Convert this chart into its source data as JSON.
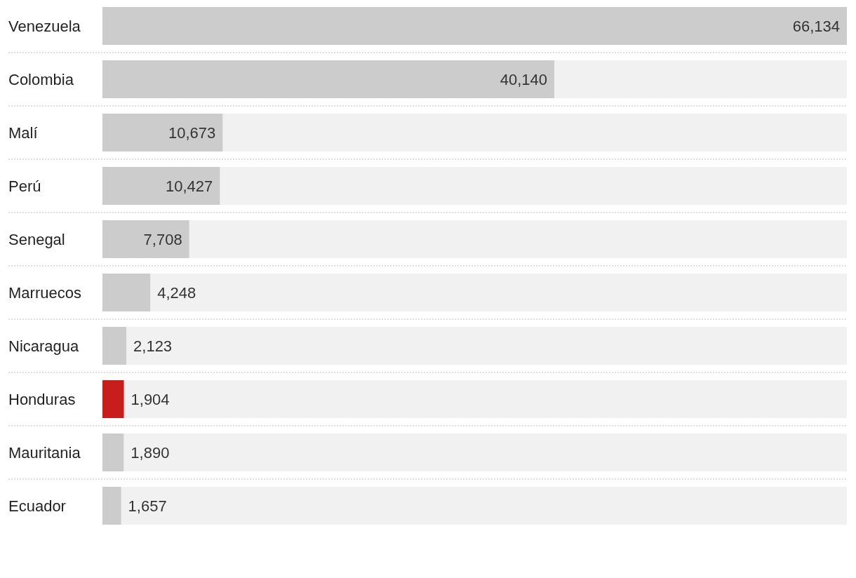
{
  "chart_data": {
    "type": "bar",
    "orientation": "horizontal",
    "categories": [
      "Venezuela",
      "Colombia",
      "Malí",
      "Perú",
      "Senegal",
      "Marruecos",
      "Nicaragua",
      "Honduras",
      "Mauritania",
      "Ecuador"
    ],
    "values": [
      66134,
      40140,
      10673,
      10427,
      7708,
      4248,
      2123,
      1904,
      1890,
      1657
    ],
    "colors": [
      "#cccccc",
      "#cccccc",
      "#cccccc",
      "#cccccc",
      "#cccccc",
      "#cccccc",
      "#cccccc",
      "#c71e1d",
      "#cccccc",
      "#cccccc"
    ],
    "value_labels": [
      "66,134",
      "40,140",
      "10,673",
      "10,427",
      "7,708",
      "4,248",
      "2,123",
      "1,904",
      "1,890",
      "1,657"
    ],
    "tick_labels": "y",
    "grid": "y"
  }
}
